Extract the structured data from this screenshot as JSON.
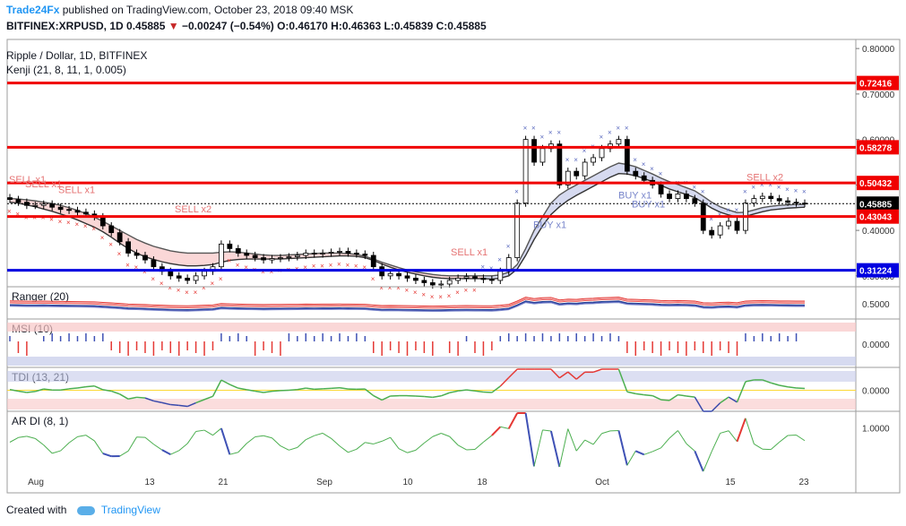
{
  "header": {
    "brand": "Trade24Fx",
    "published": "published on TradingView.com, October 23, 2018 09:40 MSK",
    "symbol": "BITFINEX:XRPUSD, 1D",
    "price": "0.45885",
    "change": "−0.00247 (−0.54%)",
    "o": "O:0.46170",
    "h": "H:0.46363",
    "l": "L:0.45839",
    "c": "C:0.45885",
    "down_marker": "▼",
    "chart_name": "Ripple / Dollar, 1D, BITFINEX",
    "indicator": "Kenji (21, 8, 11, 1, 0.005)"
  },
  "footer": {
    "created_with": "Created with",
    "brand": "TradingView"
  },
  "chart_data": [
    {
      "type": "candlestick",
      "ylim": [
        0.28,
        0.82
      ],
      "y_ticks": [
        "0.80000",
        "0.70000",
        "0.60000",
        "0.50000",
        "0.40000",
        "0.30000"
      ],
      "y_tick_values": [
        0.8,
        0.7,
        0.6,
        0.5,
        0.4,
        0.3
      ],
      "x_ticks": [
        "Aug",
        "13",
        "21",
        "Sep",
        "10",
        "18",
        "Oct",
        "15",
        "23"
      ],
      "levels": [
        {
          "value": 0.72416,
          "label": "0.72416",
          "color": "#f00000"
        },
        {
          "value": 0.58278,
          "label": "0.58278",
          "color": "#f00000"
        },
        {
          "value": 0.50432,
          "label": "0.50432",
          "color": "#f00000"
        },
        {
          "value": 0.45885,
          "label": "0.45885",
          "color": "#000000"
        },
        {
          "value": 0.43043,
          "label": "0.43043",
          "color": "#f00000"
        },
        {
          "value": 0.31224,
          "label": "0.31224",
          "color": "#0000e0"
        }
      ],
      "close": [
        0.468,
        0.462,
        0.455,
        0.455,
        0.458,
        0.451,
        0.446,
        0.444,
        0.44,
        0.436,
        0.43,
        0.41,
        0.395,
        0.375,
        0.35,
        0.345,
        0.335,
        0.32,
        0.31,
        0.3,
        0.295,
        0.29,
        0.3,
        0.31,
        0.32,
        0.37,
        0.36,
        0.35,
        0.345,
        0.34,
        0.335,
        0.338,
        0.34,
        0.342,
        0.345,
        0.35,
        0.348,
        0.35,
        0.352,
        0.354,
        0.35,
        0.348,
        0.345,
        0.32,
        0.3,
        0.305,
        0.3,
        0.295,
        0.29,
        0.285,
        0.28,
        0.282,
        0.29,
        0.295,
        0.298,
        0.295,
        0.292,
        0.29,
        0.31,
        0.34,
        0.46,
        0.6,
        0.55,
        0.58,
        0.59,
        0.5,
        0.53,
        0.52,
        0.55,
        0.56,
        0.58,
        0.59,
        0.6,
        0.53,
        0.52,
        0.51,
        0.5,
        0.48,
        0.47,
        0.48,
        0.47,
        0.46,
        0.4,
        0.39,
        0.41,
        0.42,
        0.4,
        0.46,
        0.47,
        0.475,
        0.47,
        0.465,
        0.462,
        0.46,
        0.459
      ],
      "kenji_upper": [
        0.47,
        0.469,
        0.467,
        0.465,
        0.462,
        0.459,
        0.455,
        0.45,
        0.444,
        0.437,
        0.429,
        0.42,
        0.41,
        0.4,
        0.39,
        0.38,
        0.372,
        0.365,
        0.36,
        0.355,
        0.352,
        0.35,
        0.35,
        0.35,
        0.35,
        0.352,
        0.353,
        0.352,
        0.35,
        0.348,
        0.346,
        0.345,
        0.345,
        0.346,
        0.347,
        0.348,
        0.349,
        0.35,
        0.35,
        0.35,
        0.349,
        0.347,
        0.343,
        0.337,
        0.33,
        0.324,
        0.318,
        0.313,
        0.309,
        0.306,
        0.303,
        0.301,
        0.3,
        0.3,
        0.3,
        0.3,
        0.3,
        0.3,
        0.302,
        0.308,
        0.325,
        0.36,
        0.4,
        0.43,
        0.46,
        0.478,
        0.49,
        0.5,
        0.51,
        0.52,
        0.53,
        0.54,
        0.548,
        0.545,
        0.54,
        0.532,
        0.524,
        0.515,
        0.507,
        0.501,
        0.494,
        0.487,
        0.475,
        0.462,
        0.452,
        0.445,
        0.439,
        0.44,
        0.445,
        0.45,
        0.453,
        0.455,
        0.456,
        0.457,
        0.457
      ],
      "kenji_lower": [
        0.462,
        0.46,
        0.456,
        0.452,
        0.447,
        0.442,
        0.436,
        0.43,
        0.423,
        0.415,
        0.407,
        0.397,
        0.385,
        0.372,
        0.36,
        0.35,
        0.342,
        0.336,
        0.331,
        0.327,
        0.324,
        0.322,
        0.322,
        0.323,
        0.325,
        0.33,
        0.334,
        0.336,
        0.337,
        0.337,
        0.337,
        0.337,
        0.337,
        0.338,
        0.339,
        0.34,
        0.341,
        0.342,
        0.343,
        0.344,
        0.344,
        0.343,
        0.34,
        0.334,
        0.326,
        0.319,
        0.313,
        0.308,
        0.304,
        0.3,
        0.297,
        0.295,
        0.294,
        0.294,
        0.294,
        0.294,
        0.294,
        0.293,
        0.295,
        0.3,
        0.315,
        0.345,
        0.38,
        0.41,
        0.435,
        0.452,
        0.466,
        0.477,
        0.487,
        0.497,
        0.507,
        0.517,
        0.525,
        0.524,
        0.52,
        0.514,
        0.507,
        0.499,
        0.491,
        0.485,
        0.479,
        0.472,
        0.461,
        0.449,
        0.44,
        0.434,
        0.429,
        0.431,
        0.436,
        0.441,
        0.445,
        0.447,
        0.449,
        0.45,
        0.451
      ],
      "annotations": [
        {
          "text": "SELL x1",
          "color": "#e57373"
        },
        {
          "text": "SELL x1",
          "color": "#e57373"
        },
        {
          "text": "SELL x1",
          "color": "#e57373"
        },
        {
          "text": "SELL x2",
          "color": "#e57373"
        },
        {
          "text": "SELL x1",
          "color": "#e57373"
        },
        {
          "text": "BUY x1",
          "color": "#7986cb"
        },
        {
          "text": "BUY x1",
          "color": "#7986cb"
        },
        {
          "text": "BUY x1",
          "color": "#7986cb"
        },
        {
          "text": "SELL x2",
          "color": "#e57373"
        }
      ]
    },
    {
      "type": "line",
      "name": "Ranger (20)",
      "y_ticks": [
        "0.5000"
      ],
      "y_tick_values": [
        0.5
      ],
      "ylim": [
        0.2,
        0.8
      ]
    },
    {
      "type": "bar",
      "name": "MSI (10)",
      "y_ticks": [
        "0.0000"
      ],
      "y_tick_values": [
        0
      ],
      "ylim": [
        -1,
        1
      ]
    },
    {
      "type": "line",
      "name": "TDI (13, 21)",
      "y_ticks": [
        "0.0000"
      ],
      "y_tick_values": [
        0
      ],
      "ylim": [
        -1,
        1
      ]
    },
    {
      "type": "line",
      "name": "AR DI (8, 1)",
      "y_ticks": [
        "1.0000"
      ],
      "y_tick_values": [
        1
      ],
      "ylim": [
        -2,
        2
      ]
    }
  ]
}
